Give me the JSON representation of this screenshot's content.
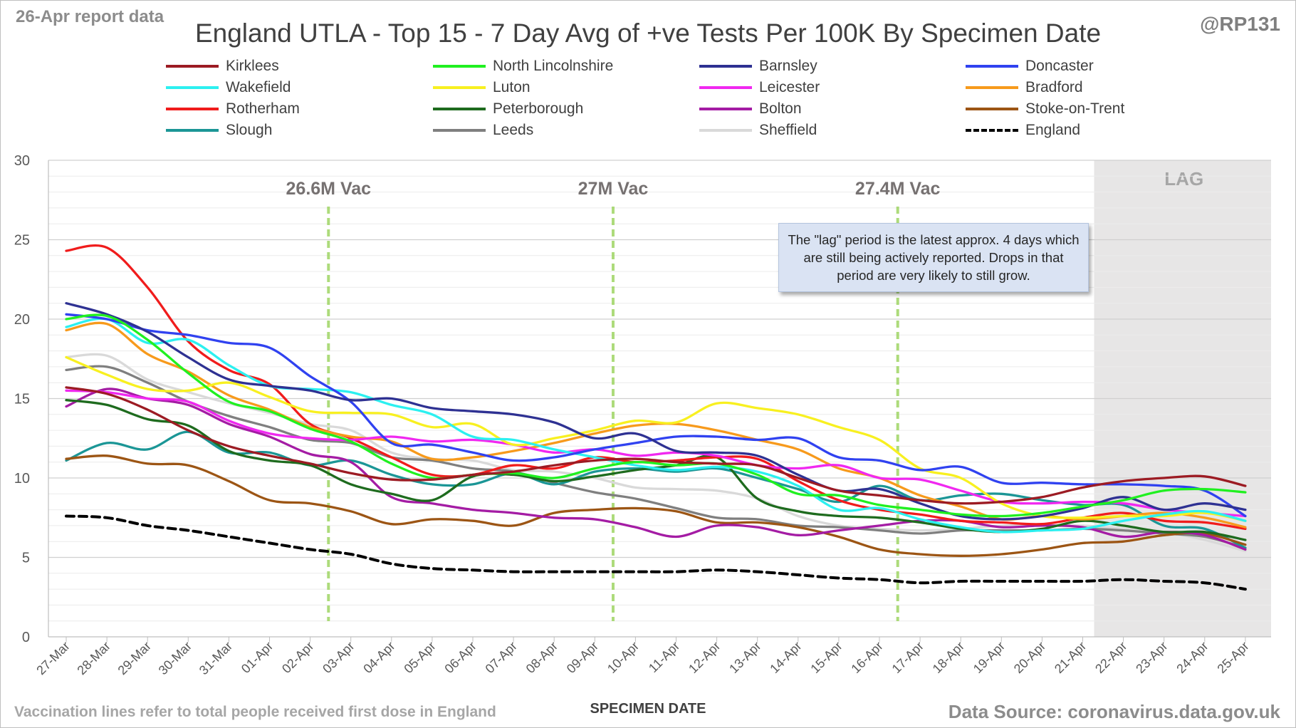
{
  "header": {
    "report_date": "26-Apr report data",
    "handle": "@RP131",
    "title": "England UTLA - Top 15 - 7 Day Avg of +ve Tests Per 100K By Specimen Date"
  },
  "footer": {
    "footnote": "Vaccination lines refer to total people received first dose in England",
    "source": "Data Source: coronavirus.data.gov.uk"
  },
  "note": "The \"lag\" period is the latest approx. 4 days which are still being actively reported. Drops in that period are very likely to still grow.",
  "chart_data": {
    "type": "line",
    "title": "England UTLA - Top 15 - 7 Day Avg of +ve Tests Per 100K By Specimen Date",
    "xlabel": "SPECIMEN DATE",
    "ylabel": "",
    "ylim": [
      0,
      30
    ],
    "yticks": [
      0,
      5,
      10,
      15,
      20,
      25,
      30
    ],
    "grid": true,
    "legend_position": "top",
    "categories": [
      "27-Mar",
      "28-Mar",
      "29-Mar",
      "30-Mar",
      "31-Mar",
      "01-Apr",
      "02-Apr",
      "03-Apr",
      "04-Apr",
      "05-Apr",
      "06-Apr",
      "07-Apr",
      "08-Apr",
      "09-Apr",
      "10-Apr",
      "11-Apr",
      "12-Apr",
      "13-Apr",
      "14-Apr",
      "15-Apr",
      "16-Apr",
      "17-Apr",
      "18-Apr",
      "19-Apr",
      "20-Apr",
      "21-Apr",
      "22-Apr",
      "23-Apr",
      "24-Apr",
      "25-Apr"
    ],
    "shaded_region": {
      "label": "LAG",
      "from": "22-Apr",
      "to": "25-Apr",
      "color": "#e7e6e6"
    },
    "vaccination_lines": [
      {
        "label": "26.6M Vac",
        "at": "02-Apr",
        "color": "#92d050"
      },
      {
        "label": "27M Vac",
        "at": "09-Apr",
        "color": "#92d050"
      },
      {
        "label": "27.4M Vac",
        "at": "16-Apr",
        "color": "#92d050"
      }
    ],
    "series": [
      {
        "name": "Kirklees",
        "color": "#9c1b23",
        "dash": false,
        "values": [
          15.7,
          15.3,
          14.3,
          13.0,
          12.0,
          11.4,
          10.9,
          10.3,
          9.9,
          9.9,
          10.2,
          10.4,
          10.8,
          11.1,
          11.2,
          11.0,
          10.9,
          10.8,
          10.0,
          9.2,
          8.9,
          8.6,
          8.4,
          8.5,
          8.8,
          9.4,
          9.8,
          10.0,
          10.1,
          9.5
        ]
      },
      {
        "name": "North Lincolnshire",
        "color": "#20f020",
        "dash": false,
        "values": [
          20.0,
          20.2,
          18.7,
          16.6,
          14.8,
          14.2,
          13.1,
          12.3,
          10.9,
          10.0,
          10.2,
          10.3,
          10.0,
          10.6,
          11.0,
          10.8,
          10.9,
          10.2,
          9.0,
          8.9,
          8.3,
          8.0,
          7.7,
          7.6,
          7.8,
          8.2,
          8.6,
          9.2,
          9.3,
          9.1
        ]
      },
      {
        "name": "Barnsley",
        "color": "#2e3192",
        "dash": false,
        "values": [
          21.0,
          20.3,
          19.2,
          17.6,
          16.2,
          15.8,
          15.5,
          14.9,
          15.0,
          14.4,
          14.2,
          14.0,
          13.5,
          12.5,
          12.8,
          11.7,
          11.6,
          11.4,
          10.2,
          9.2,
          9.3,
          8.4,
          7.6,
          7.4,
          7.6,
          8.1,
          8.8,
          8.0,
          8.4,
          8.0
        ]
      },
      {
        "name": "Doncaster",
        "color": "#3042f0",
        "dash": false,
        "values": [
          20.3,
          20.0,
          19.3,
          19.0,
          18.5,
          18.2,
          16.4,
          14.8,
          12.2,
          12.1,
          11.6,
          11.1,
          11.3,
          11.8,
          12.2,
          12.6,
          12.6,
          12.4,
          12.5,
          11.3,
          11.1,
          10.5,
          10.7,
          9.7,
          9.7,
          9.6,
          9.6,
          9.5,
          9.2,
          7.6
        ]
      },
      {
        "name": "Wakefield",
        "color": "#2cf0f0",
        "dash": false,
        "values": [
          19.5,
          20.0,
          18.5,
          18.7,
          17.1,
          15.8,
          15.6,
          15.4,
          14.6,
          14.0,
          12.6,
          12.4,
          11.8,
          11.3,
          10.8,
          10.5,
          10.7,
          10.4,
          9.5,
          8.0,
          8.1,
          7.4,
          6.9,
          6.6,
          6.7,
          6.8,
          7.3,
          7.7,
          7.9,
          7.3
        ]
      },
      {
        "name": "Luton",
        "color": "#f8f020",
        "dash": false,
        "values": [
          17.6,
          16.5,
          15.6,
          15.5,
          16.0,
          15.1,
          14.2,
          14.1,
          14.0,
          13.2,
          13.4,
          12.1,
          12.5,
          13.0,
          13.6,
          13.5,
          14.7,
          14.4,
          14.0,
          13.2,
          12.4,
          10.6,
          10.0,
          8.4,
          7.6,
          7.5,
          7.6,
          7.6,
          7.8,
          7.3
        ]
      },
      {
        "name": "Leicester",
        "color": "#f028f0",
        "dash": false,
        "values": [
          15.5,
          15.4,
          15.0,
          14.8,
          13.6,
          12.8,
          12.5,
          12.4,
          12.6,
          12.3,
          12.4,
          12.1,
          11.6,
          11.8,
          11.4,
          11.6,
          11.4,
          10.8,
          10.6,
          10.8,
          10.0,
          9.9,
          9.2,
          8.5,
          8.4,
          8.5,
          8.4,
          8.0,
          7.8,
          7.6
        ]
      },
      {
        "name": "Bradford",
        "color": "#f79a1c",
        "dash": false,
        "values": [
          19.3,
          19.7,
          17.8,
          16.7,
          15.2,
          14.3,
          13.2,
          12.6,
          12.3,
          11.2,
          11.3,
          11.7,
          12.2,
          12.8,
          13.3,
          13.4,
          13.0,
          12.4,
          11.8,
          10.6,
          10.0,
          8.9,
          8.2,
          7.4,
          7.6,
          7.4,
          7.6,
          7.8,
          7.5,
          6.9
        ]
      },
      {
        "name": "Rotherham",
        "color": "#f01c1c",
        "dash": false,
        "values": [
          24.3,
          24.5,
          22.0,
          18.6,
          16.8,
          15.9,
          13.4,
          12.5,
          11.3,
          10.2,
          10.2,
          10.8,
          10.6,
          11.3,
          11.0,
          11.1,
          11.3,
          11.2,
          9.8,
          8.6,
          8.0,
          7.7,
          7.3,
          7.2,
          7.1,
          7.5,
          7.8,
          7.3,
          7.2,
          6.8
        ]
      },
      {
        "name": "Peterborough",
        "color": "#1e6b1e",
        "dash": false,
        "values": [
          14.9,
          14.6,
          13.7,
          13.3,
          11.7,
          11.1,
          10.8,
          9.6,
          9.0,
          8.6,
          10.1,
          10.2,
          9.8,
          10.1,
          10.5,
          10.8,
          11.3,
          8.7,
          7.9,
          7.6,
          7.5,
          7.2,
          6.8,
          6.6,
          6.8,
          7.3,
          7.0,
          6.6,
          6.6,
          6.1
        ]
      },
      {
        "name": "Bolton",
        "color": "#a41ca4",
        "dash": false,
        "values": [
          14.5,
          15.6,
          15.0,
          14.6,
          13.4,
          12.6,
          11.5,
          11.0,
          8.8,
          8.4,
          8.0,
          7.8,
          7.5,
          7.4,
          6.9,
          6.3,
          7.0,
          6.9,
          6.4,
          6.7,
          7.0,
          7.3,
          7.3,
          6.9,
          7.0,
          6.9,
          6.3,
          6.6,
          6.4,
          5.5
        ]
      },
      {
        "name": "Stoke-on-Trent",
        "color": "#9c5514",
        "dash": false,
        "values": [
          11.2,
          11.4,
          10.9,
          10.8,
          9.8,
          8.6,
          8.4,
          7.9,
          7.1,
          7.4,
          7.3,
          7.0,
          7.8,
          8.0,
          8.1,
          7.9,
          7.2,
          7.2,
          6.9,
          6.3,
          5.5,
          5.2,
          5.1,
          5.2,
          5.5,
          5.9,
          6.0,
          6.4,
          6.5,
          5.8
        ]
      },
      {
        "name": "Slough",
        "color": "#1b9696",
        "dash": false,
        "values": [
          11.1,
          12.2,
          11.8,
          12.9,
          11.6,
          11.6,
          10.8,
          11.1,
          10.2,
          9.6,
          9.6,
          10.3,
          9.6,
          10.4,
          10.6,
          10.4,
          10.6,
          10.0,
          9.3,
          8.5,
          9.5,
          8.6,
          8.9,
          9.0,
          8.6,
          8.3,
          8.3,
          7.0,
          6.8,
          5.6
        ]
      },
      {
        "name": "Leeds",
        "color": "#7f7f7f",
        "dash": false,
        "values": [
          16.8,
          17.0,
          16.0,
          14.8,
          13.9,
          13.2,
          12.4,
          12.2,
          11.3,
          11.1,
          10.6,
          10.4,
          9.7,
          9.1,
          8.7,
          8.1,
          7.5,
          7.4,
          7.0,
          6.9,
          6.7,
          6.5,
          6.7,
          6.7,
          6.7,
          6.8,
          6.7,
          6.5,
          6.3,
          5.6
        ]
      },
      {
        "name": "Sheffield",
        "color": "#d9d9d9",
        "dash": false,
        "values": [
          17.6,
          17.7,
          16.2,
          15.4,
          14.7,
          14.1,
          13.4,
          13.0,
          11.6,
          11.2,
          11.1,
          10.5,
          10.4,
          10.0,
          9.4,
          9.3,
          9.2,
          8.7,
          7.6,
          7.0,
          6.8,
          6.7,
          6.8,
          7.0,
          7.0,
          7.0,
          6.8,
          6.6,
          6.1,
          5.4
        ]
      },
      {
        "name": "England",
        "color": "#000000",
        "dash": true,
        "values": [
          7.6,
          7.5,
          7.0,
          6.7,
          6.3,
          5.9,
          5.5,
          5.2,
          4.6,
          4.3,
          4.2,
          4.1,
          4.1,
          4.1,
          4.1,
          4.1,
          4.2,
          4.1,
          3.9,
          3.7,
          3.6,
          3.4,
          3.5,
          3.5,
          3.5,
          3.5,
          3.6,
          3.5,
          3.4,
          3.0
        ]
      }
    ]
  }
}
